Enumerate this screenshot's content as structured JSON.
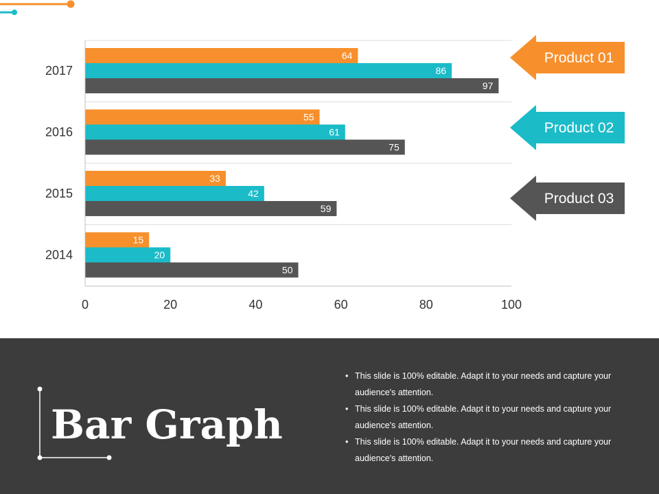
{
  "chart_data": {
    "type": "bar",
    "orientation": "horizontal",
    "categories": [
      "2017",
      "2016",
      "2015",
      "2014"
    ],
    "series": [
      {
        "name": "Product 01",
        "color": "#f7902c",
        "values": [
          64,
          55,
          33,
          15
        ]
      },
      {
        "name": "Product 02",
        "color": "#1bbbc8",
        "values": [
          86,
          61,
          42,
          20
        ]
      },
      {
        "name": "Product 03",
        "color": "#555555",
        "values": [
          97,
          75,
          59,
          50
        ]
      }
    ],
    "xlim": [
      0,
      100
    ],
    "xticks": [
      0,
      20,
      40,
      60,
      80,
      100
    ],
    "grid": true,
    "legend_position": "right",
    "data_labels": true
  },
  "slide": {
    "title": "Bar Graph",
    "bullets": [
      "This slide is 100% editable. Adapt it to your needs and capture your audience's attention.",
      "This slide is 100% editable. Adapt it to your needs and capture your audience's attention.",
      "This slide is 100% editable. Adapt it to your needs and capture your audience's attention."
    ]
  },
  "colors": {
    "accent_orange": "#f7902c",
    "accent_teal": "#1bbbc8",
    "dark_gray": "#555555",
    "footer_background": "#3c3c3c"
  }
}
